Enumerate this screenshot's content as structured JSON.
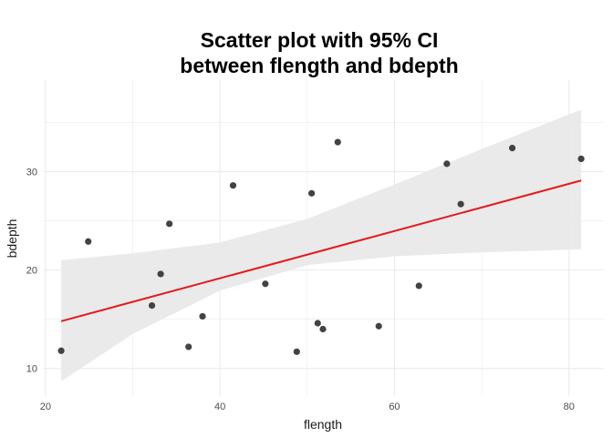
{
  "chart_data": {
    "type": "scatter",
    "title_lines": [
      "Scatter plot with 95% CI",
      "between flength and bdepth"
    ],
    "xlabel": "flength",
    "ylabel": "bdepth",
    "xlim": [
      19.7,
      84.0
    ],
    "ylim": [
      7.2,
      39.3
    ],
    "xticks": [
      20,
      40,
      60,
      80
    ],
    "yticks": [
      10,
      20,
      30
    ],
    "grid": true,
    "points": [
      {
        "x": 21.8,
        "y": 11.8
      },
      {
        "x": 24.9,
        "y": 22.9
      },
      {
        "x": 32.2,
        "y": 16.4
      },
      {
        "x": 33.2,
        "y": 19.6
      },
      {
        "x": 34.2,
        "y": 24.7
      },
      {
        "x": 36.4,
        "y": 12.2
      },
      {
        "x": 38.0,
        "y": 15.3
      },
      {
        "x": 41.5,
        "y": 28.6
      },
      {
        "x": 45.2,
        "y": 18.6
      },
      {
        "x": 48.8,
        "y": 11.7
      },
      {
        "x": 50.5,
        "y": 27.8
      },
      {
        "x": 51.2,
        "y": 14.6
      },
      {
        "x": 51.8,
        "y": 14.0
      },
      {
        "x": 53.5,
        "y": 33.0
      },
      {
        "x": 58.2,
        "y": 14.3
      },
      {
        "x": 62.8,
        "y": 18.4
      },
      {
        "x": 66.0,
        "y": 30.8
      },
      {
        "x": 67.6,
        "y": 26.7
      },
      {
        "x": 73.5,
        "y": 32.4
      },
      {
        "x": 81.4,
        "y": 31.3
      }
    ],
    "fit": {
      "x": [
        21.8,
        81.4
      ],
      "y": [
        14.8,
        29.1
      ]
    },
    "ci": {
      "x": [
        21.8,
        30.0,
        40.0,
        50.0,
        60.0,
        70.0,
        81.4
      ],
      "lower": [
        8.7,
        13.5,
        17.9,
        20.5,
        21.4,
        21.8,
        22.1
      ],
      "upper": [
        21.0,
        21.7,
        22.8,
        25.2,
        28.7,
        32.3,
        36.3
      ]
    },
    "colors": {
      "points": "#333333",
      "fit_line": "#e41a1c",
      "ci_band": "#e8e8e8",
      "grid": "#ebebeb"
    }
  }
}
